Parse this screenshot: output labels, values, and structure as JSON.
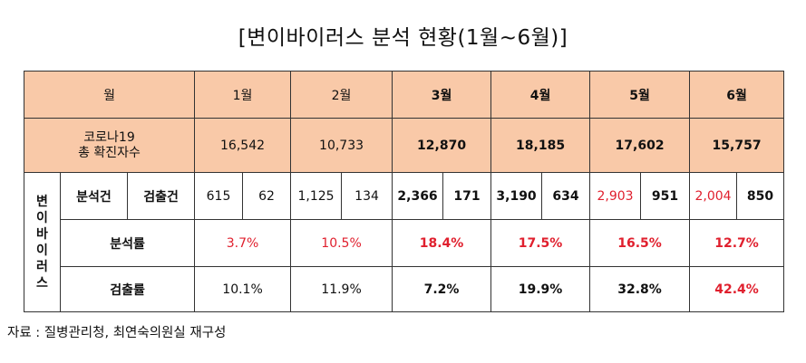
{
  "title": "[변이바이러스 분석 현황(1월~6월)]",
  "header": {
    "month_label": "월",
    "months": [
      "1월",
      "2월",
      "3월",
      "4월",
      "5월",
      "6월"
    ],
    "confirmed_label_line1": "코로나19",
    "confirmed_label_line2": "총 확진자수",
    "confirmed": [
      "16,542",
      "10,733",
      "12,870",
      "18,185",
      "17,602",
      "15,757"
    ]
  },
  "body": {
    "side_label": [
      "변",
      "이",
      "바",
      "이",
      "러",
      "스"
    ],
    "analysis_count_label": "분석건",
    "detect_count_label": "검출건",
    "counts": [
      {
        "analyzed": "615",
        "detected": "62"
      },
      {
        "analyzed": "1,125",
        "detected": "134"
      },
      {
        "analyzed": "2,366",
        "detected": "171"
      },
      {
        "analyzed": "3,190",
        "detected": "634"
      },
      {
        "analyzed": "2,903",
        "detected": "951"
      },
      {
        "analyzed": "2,004",
        "detected": "850"
      }
    ],
    "analysis_rate_label": "분석률",
    "analysis_rates": [
      "3.7%",
      "10.5%",
      "18.4%",
      "17.5%",
      "16.5%",
      "12.7%"
    ],
    "detect_rate_label": "검출률",
    "detect_rates": [
      "10.1%",
      "11.9%",
      "7.2%",
      "19.9%",
      "32.8%",
      "42.4%"
    ]
  },
  "source": "자료 : 질병관리청, 최연숙의원실 재구성",
  "colors": {
    "header_bg": "#f9c9a8",
    "highlight_red": "#e0202e"
  }
}
